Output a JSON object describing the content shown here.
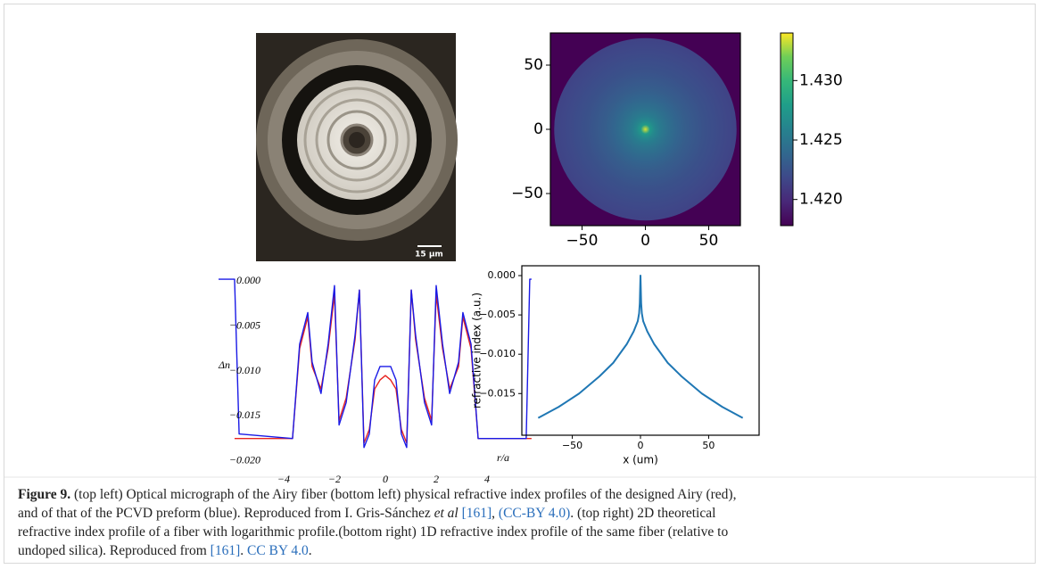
{
  "micrograph": {
    "scale_bar_label": "15 µm"
  },
  "chart_data": [
    {
      "type": "heatmap",
      "xlim": [
        -75,
        75
      ],
      "ylim": [
        -75,
        75
      ],
      "xticks": [
        {
          "value": -50,
          "label": "−50"
        },
        0,
        50
      ],
      "yticks": [
        50,
        0,
        {
          "value": -50,
          "label": "−50"
        }
      ],
      "core_radius": 72,
      "values": {
        "core_center": 1.4335,
        "core_edge": 1.4215,
        "cladding": 1.4178
      },
      "clim": [
        1.4178,
        1.434
      ],
      "colorbar_ticks": [
        {
          "value": 1.42,
          "label": "1.420"
        },
        {
          "value": 1.425,
          "label": "1.425"
        },
        {
          "value": 1.43,
          "label": "1.430"
        }
      ]
    },
    {
      "type": "line",
      "axes_frame": false,
      "xlabel": "r/a",
      "ylabel": "Δn",
      "xlim": [
        -6.7,
        6.0
      ],
      "ylim": [
        -0.0215,
        0.0015
      ],
      "xticks": [
        {
          "value": -4,
          "label": "−4"
        },
        {
          "value": -2,
          "label": "−2"
        },
        0,
        2,
        4
      ],
      "yticks": [
        {
          "value": 0,
          "label": "0.000"
        },
        {
          "value": -0.005,
          "label": "−0.005"
        },
        {
          "value": -0.01,
          "label": "−0.010"
        },
        {
          "value": -0.015,
          "label": "−0.015"
        },
        {
          "value": -0.02,
          "label": "−0.020"
        }
      ],
      "x": [
        -6.56,
        -5.93,
        -5.75,
        -3.65,
        -3.37,
        -3.05,
        -2.88,
        -2.53,
        -2.25,
        -2.0,
        -1.82,
        -1.54,
        -1.19,
        -1.02,
        -0.84,
        -0.63,
        -0.42,
        -0.21,
        0,
        0.21,
        0.42,
        0.63,
        0.84,
        1.02,
        1.19,
        1.54,
        1.82,
        2.0,
        2.25,
        2.53,
        2.88,
        3.05,
        3.37,
        3.65,
        5.54,
        5.68,
        5.75
      ],
      "series": [
        {
          "color": "#e8231f",
          "values": [
            null,
            -0.0175,
            -0.0175,
            -0.0175,
            -0.0075,
            -0.004,
            -0.0095,
            -0.012,
            -0.0075,
            -0.0015,
            -0.0155,
            -0.013,
            -0.0065,
            -0.001,
            -0.018,
            -0.0165,
            -0.012,
            -0.011,
            -0.0105,
            -0.011,
            -0.012,
            -0.0165,
            -0.018,
            -0.001,
            -0.0065,
            -0.013,
            -0.0155,
            -0.0015,
            -0.0075,
            -0.012,
            -0.0095,
            -0.004,
            -0.0075,
            -0.0175,
            -0.0175,
            -0.0175,
            -0.0175
          ]
        },
        {
          "color": "#1a1ae6",
          "values": [
            0.0002,
            0.0002,
            -0.017,
            -0.0175,
            -0.007,
            -0.0035,
            -0.009,
            -0.0125,
            -0.007,
            -0.0005,
            -0.016,
            -0.0135,
            -0.006,
            -0.001,
            -0.0185,
            -0.017,
            -0.011,
            -0.0095,
            -0.0095,
            -0.0095,
            -0.011,
            -0.017,
            -0.0185,
            -0.001,
            -0.006,
            -0.0135,
            -0.016,
            -0.0005,
            -0.007,
            -0.0125,
            -0.009,
            -0.0035,
            -0.007,
            -0.0175,
            -0.0175,
            0.0002,
            0.0002
          ]
        }
      ]
    },
    {
      "type": "line",
      "axes_frame": true,
      "xlabel": "x (um)",
      "ylabel": "refractive index (a.u.)",
      "xlim": [
        -87,
        87
      ],
      "ylim": [
        -0.0203,
        0.00125
      ],
      "xticks": [
        {
          "value": -50,
          "label": "−50"
        },
        0,
        50
      ],
      "yticks": [
        {
          "value": 0,
          "label": "0.000"
        },
        {
          "value": -0.005,
          "label": "−0.005"
        },
        {
          "value": -0.01,
          "label": "−0.010"
        },
        {
          "value": -0.015,
          "label": "−0.015"
        }
      ],
      "x": [
        -75,
        -60,
        -45,
        -30,
        -20,
        -10,
        -5,
        -2,
        -1,
        -0.5,
        0,
        0.5,
        1,
        2,
        5,
        10,
        20,
        30,
        45,
        60,
        75
      ],
      "series": [
        {
          "color": "#1f77b4",
          "values": [
            -0.0181,
            -0.0167,
            -0.015,
            -0.0128,
            -0.0111,
            -0.0087,
            -0.0071,
            -0.0058,
            -0.0048,
            -0.0035,
            0,
            -0.0035,
            -0.0048,
            -0.0058,
            -0.0071,
            -0.0087,
            -0.0111,
            -0.0128,
            -0.015,
            -0.0167,
            -0.0181
          ]
        }
      ]
    }
  ],
  "caption": {
    "runs": [
      "Figure 9.",
      " (top left) Optical micrograph of the Airy fiber (bottom left) physical refractive index profiles of the designed Airy (red),",
      "and of that of the PCVD preform (blue). Reproduced from I. Gris-Sánchez ",
      "et al",
      " ",
      "[161]",
      ", ",
      "(CC-BY 4.0)",
      ". (top right) 2D theoretical",
      "refractive index profile of a fiber with logarithmic profile.(bottom right) 1D refractive index profile of the same fiber (relative to",
      "undoped silica). Reproduced from ",
      "[161]",
      ". ",
      "CC BY 4.0",
      "."
    ]
  }
}
